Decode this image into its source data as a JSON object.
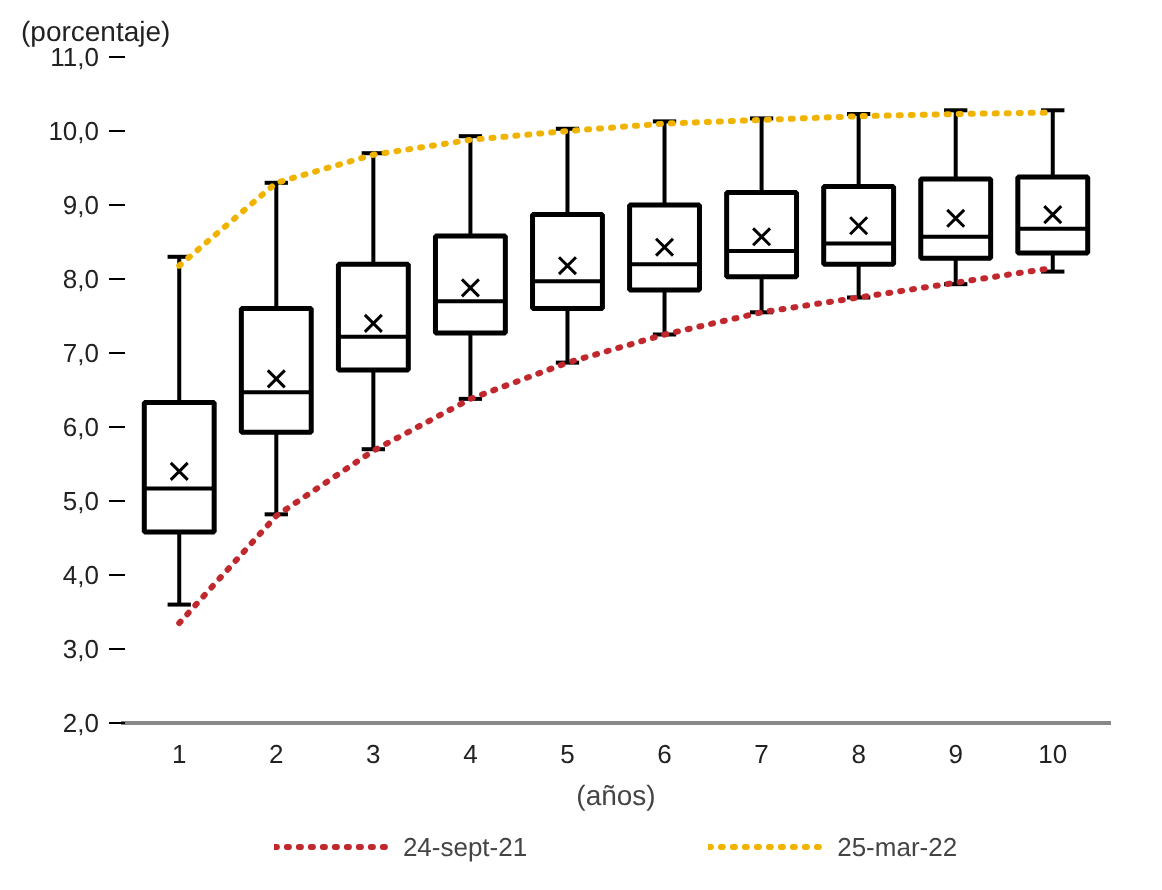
{
  "chart_data": {
    "type": "box",
    "ylabel": "(porcentaje)",
    "xlabel": "(años)",
    "categories": [
      "1",
      "2",
      "3",
      "4",
      "5",
      "6",
      "7",
      "8",
      "9",
      "10"
    ],
    "boxes": [
      {
        "low": 3.6,
        "q1": 4.58,
        "median": 5.17,
        "q3": 6.33,
        "high": 8.3,
        "mean": 5.4
      },
      {
        "low": 4.82,
        "q1": 5.93,
        "median": 6.47,
        "q3": 7.6,
        "high": 9.3,
        "mean": 6.65
      },
      {
        "low": 5.7,
        "q1": 6.77,
        "median": 7.22,
        "q3": 8.2,
        "high": 9.7,
        "mean": 7.4
      },
      {
        "low": 6.38,
        "q1": 7.27,
        "median": 7.7,
        "q3": 8.58,
        "high": 9.93,
        "mean": 7.88
      },
      {
        "low": 6.87,
        "q1": 7.6,
        "median": 7.97,
        "q3": 8.87,
        "high": 10.03,
        "mean": 8.18
      },
      {
        "low": 7.25,
        "q1": 7.85,
        "median": 8.2,
        "q3": 9.0,
        "high": 10.13,
        "mean": 8.43
      },
      {
        "low": 7.55,
        "q1": 8.03,
        "median": 8.38,
        "q3": 9.17,
        "high": 10.17,
        "mean": 8.57
      },
      {
        "low": 7.75,
        "q1": 8.2,
        "median": 8.48,
        "q3": 9.25,
        "high": 10.23,
        "mean": 8.72
      },
      {
        "low": 7.93,
        "q1": 8.28,
        "median": 8.57,
        "q3": 9.35,
        "high": 10.28,
        "mean": 8.82
      },
      {
        "low": 8.1,
        "q1": 8.35,
        "median": 8.68,
        "q3": 9.38,
        "high": 10.28,
        "mean": 8.87
      }
    ],
    "series": [
      {
        "name": "24-sept-21",
        "type": "line",
        "color": "#c0282d",
        "line_style": "dotted",
        "values": [
          3.35,
          4.8,
          5.68,
          6.38,
          6.87,
          7.25,
          7.55,
          7.75,
          7.95,
          8.15
        ]
      },
      {
        "name": "25-mar-22",
        "type": "line",
        "color": "#f0b400",
        "line_style": "dotted",
        "values": [
          8.18,
          9.3,
          9.68,
          9.88,
          10.0,
          10.1,
          10.15,
          10.2,
          10.23,
          10.25
        ]
      }
    ],
    "ylim": [
      2.0,
      11.0
    ],
    "yticks": [
      {
        "value": 2,
        "label": "2,0"
      },
      {
        "value": 3,
        "label": "3,0"
      },
      {
        "value": 4,
        "label": "4,0"
      },
      {
        "value": 5,
        "label": "5,0"
      },
      {
        "value": 6,
        "label": "6,0"
      },
      {
        "value": 7,
        "label": "7,0"
      },
      {
        "value": 8,
        "label": "8,0"
      },
      {
        "value": 9,
        "label": "9,0"
      },
      {
        "value": 10,
        "label": "10,0"
      },
      {
        "value": 11,
        "label": "11,0"
      }
    ],
    "grid": false,
    "legend": "bottom",
    "marker": "none"
  }
}
